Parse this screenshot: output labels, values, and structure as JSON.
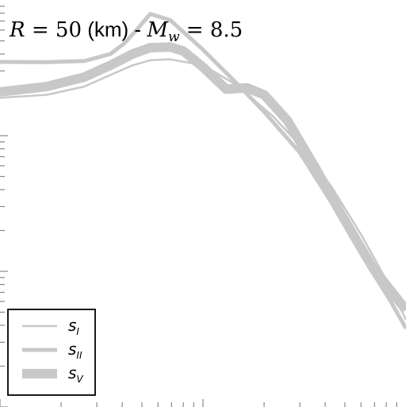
{
  "chart_data": {
    "type": "line",
    "title": {
      "prefix_var": "R",
      "equals": " = ",
      "distance_value": "50",
      "distance_unit": " (km) - ",
      "magnitude_var": "M",
      "magnitude_sub": "w",
      "magnitude_value": "8.5"
    },
    "xscale": "log",
    "yscale": "log",
    "xlim": [
      0.1,
      10
    ],
    "ylim": [
      0.001,
      1
    ],
    "grid": false,
    "legend_position": "bottom-left",
    "line_color": "#c8c8c8",
    "series": [
      {
        "name": "S_I",
        "label_main": "s",
        "label_sub": "I",
        "width": 2.5,
        "x": [
          0.1,
          0.17,
          0.26,
          0.35,
          0.45,
          0.55,
          0.69,
          1.0,
          1.44,
          2.2,
          3.0,
          4.3,
          6.1,
          8.3,
          10.0
        ],
        "y": [
          0.19,
          0.2,
          0.23,
          0.28,
          0.33,
          0.36,
          0.365,
          0.33,
          0.24,
          0.14,
          0.085,
          0.042,
          0.018,
          0.0078,
          0.0044
        ]
      },
      {
        "name": "S_II",
        "label_main": "s",
        "label_sub": "II",
        "width": 5,
        "x": [
          0.1,
          0.17,
          0.26,
          0.35,
          0.41,
          0.47,
          0.55,
          0.69,
          1.0,
          1.44,
          2.0,
          3.0,
          4.3,
          6.1,
          8.3,
          10.0
        ],
        "y": [
          0.35,
          0.348,
          0.355,
          0.4,
          0.48,
          0.6,
          0.79,
          0.71,
          0.43,
          0.25,
          0.15,
          0.075,
          0.032,
          0.013,
          0.0062,
          0.0038
        ]
      },
      {
        "name": "S_V",
        "label_main": "s",
        "label_sub": "V",
        "width": 12,
        "x": [
          0.1,
          0.17,
          0.26,
          0.35,
          0.45,
          0.55,
          0.69,
          0.8,
          1.0,
          1.3,
          1.65,
          2.0,
          2.6,
          3.6,
          4.9,
          6.9,
          10.0
        ],
        "y": [
          0.21,
          0.23,
          0.27,
          0.33,
          0.4,
          0.445,
          0.45,
          0.42,
          0.32,
          0.22,
          0.225,
          0.2,
          0.13,
          0.057,
          0.025,
          0.0105,
          0.0052
        ]
      }
    ]
  }
}
